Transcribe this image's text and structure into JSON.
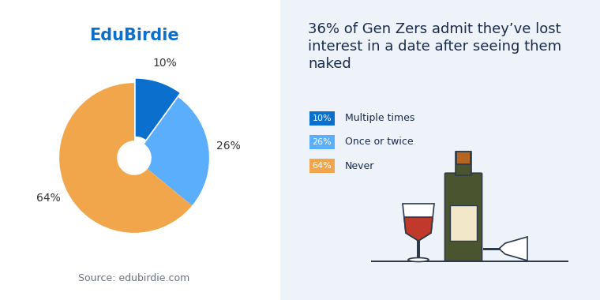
{
  "chart_data": {
    "type": "pie",
    "brand": "EduBirdie",
    "title": "36% of Gen Zers admit they’ve lost interest in a date after seeing them naked",
    "source": "Source: edubirdie.com",
    "categories": [
      "Multiple times",
      "Once or twice",
      "Never"
    ],
    "values": [
      10,
      26,
      64
    ],
    "value_labels": [
      "10%",
      "26%",
      "64%"
    ],
    "colors": [
      "#0b6fce",
      "#5aaefc",
      "#f2a64b"
    ],
    "data_labels": true
  }
}
